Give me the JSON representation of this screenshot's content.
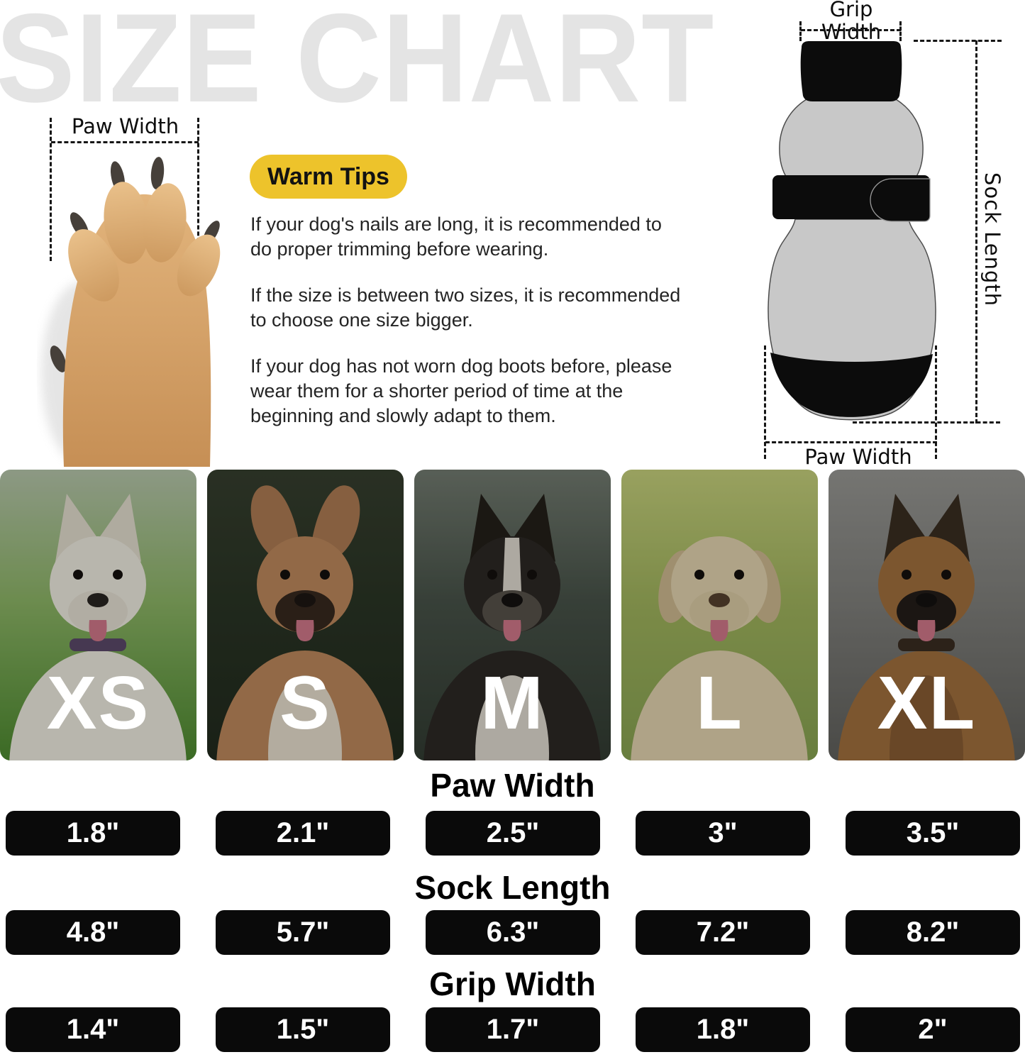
{
  "watermark": "SIZE CHART",
  "paw_photo": {
    "label": "Paw Width"
  },
  "warm_tips": {
    "badge": "Warm Tips",
    "badge_color": "#edc32b",
    "tips": [
      [
        "If your dog's nails are long, it is recommended to",
        "do proper trimming before wearing."
      ],
      [
        "If the size is between two sizes, it is recommended",
        "to choose one size bigger."
      ],
      [
        "If your dog has not worn dog boots before, please",
        "wear them for a shorter period of time at the",
        "beginning and slowly adapt to them."
      ]
    ]
  },
  "sock_diagram": {
    "grip_width_label": "Grip Width",
    "sock_length_label": "Sock Length",
    "paw_width_label": "Paw Width",
    "sock_color": "#c8c8c8",
    "accent_black": "#0c0c0c"
  },
  "size_cards": [
    {
      "size": "XS",
      "bg": [
        "#b9c9ae",
        "#8fb868",
        "#4e8c30"
      ],
      "dog": {
        "coat": "#f2efe4",
        "ears": "up",
        "earColor": "#e6e1d2",
        "muzzle": "#e9e4d6",
        "chest": null,
        "blaze": false,
        "collar": "#5c4a6b",
        "tongue": true,
        "nose": "#2a2522"
      }
    },
    {
      "size": "S",
      "bg": [
        "#37402f",
        "#2b3626",
        "#222b1e"
      ],
      "dog": {
        "coat": "#c08b5e",
        "ears": "bat",
        "earColor": "#b07e55",
        "muzzle": "#38291f",
        "chest": "#ece2d2",
        "blaze": false,
        "collar": null,
        "tongue": true,
        "nose": "#1e1713"
      }
    },
    {
      "size": "M",
      "bg": [
        "#747d72",
        "#49544a",
        "#333d33"
      ],
      "dog": {
        "coat": "#2d2926",
        "ears": "up",
        "earColor": "#242019",
        "muzzle": "#59534c",
        "chest": "#e4ded4",
        "blaze": true,
        "collar": null,
        "tongue": true,
        "nose": "#141210"
      }
    },
    {
      "size": "L",
      "bg": [
        "#c9d47e",
        "#a3b75f",
        "#8aa653"
      ],
      "dog": {
        "coat": "#e6d6b2",
        "ears": "floppy",
        "earColor": "#d2bd92",
        "muzzle": "#dfcfa8",
        "chest": null,
        "blaze": false,
        "collar": null,
        "tongue": true,
        "nose": "#57422e"
      }
    },
    {
      "size": "XL",
      "bg": [
        "#9a9a96",
        "#82827e",
        "#62625e"
      ],
      "dog": {
        "coat": "#a4713e",
        "ears": "up",
        "earColor": "#3a2e22",
        "muzzle": "#241e19",
        "chest": "#8a5e34",
        "blaze": false,
        "collar": "#3a2d22",
        "tongue": true,
        "nose": "#151210"
      }
    }
  ],
  "chart_data": {
    "type": "table",
    "title": "SIZE CHART",
    "categories": [
      "XS",
      "S",
      "M",
      "L",
      "XL"
    ],
    "sections": [
      {
        "header": "Paw Width",
        "values": [
          "1.8\"",
          "2.1\"",
          "2.5\"",
          "3\"",
          "3.5\""
        ]
      },
      {
        "header": "Sock Length",
        "values": [
          "4.8\"",
          "5.7\"",
          "6.3\"",
          "7.2\"",
          "8.2\""
        ]
      },
      {
        "header": "Grip Width",
        "values": [
          "1.4\"",
          "1.5\"",
          "1.7\"",
          "1.8\"",
          "2\""
        ]
      }
    ]
  }
}
